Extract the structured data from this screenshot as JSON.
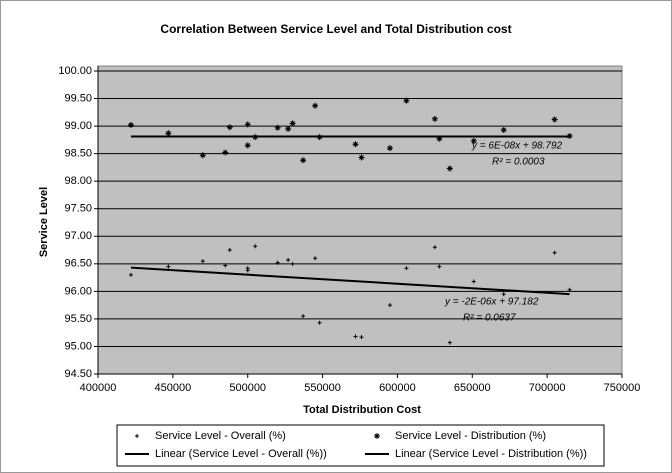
{
  "chart_data": {
    "type": "scatter",
    "title": "Correlation Between Service Level and Total Distribution cost",
    "xlabel": "Total Distribution Cost",
    "ylabel": "Service Level",
    "xlim": [
      400000,
      750000
    ],
    "xticks": [
      400000,
      450000,
      500000,
      550000,
      600000,
      650000,
      700000,
      750000
    ],
    "ylim": [
      94.5,
      100
    ],
    "yticks": [
      {
        "value": 94.5,
        "label": "94.50"
      },
      {
        "value": 95,
        "label": "95.00"
      },
      {
        "value": 95.5,
        "label": "95.50"
      },
      {
        "value": 96,
        "label": "96.00"
      },
      {
        "value": 96.5,
        "label": "96.50"
      },
      {
        "value": 97,
        "label": "97.00"
      },
      {
        "value": 97.5,
        "label": "97.50"
      },
      {
        "value": 98,
        "label": "98.00"
      },
      {
        "value": 98.5,
        "label": "98.50"
      },
      {
        "value": 99,
        "label": "99.00"
      },
      {
        "value": 99.5,
        "label": "99.50"
      },
      {
        "value": 100,
        "label": "100.00"
      }
    ],
    "grid": true,
    "series": [
      {
        "name": "Service Level - Overall (%)",
        "marker": "plus",
        "color": "#000000",
        "x": [
          422000,
          447000,
          470000,
          485000,
          488000,
          500000,
          500000,
          505000,
          520000,
          527000,
          530000,
          537000,
          545000,
          548000,
          572000,
          576000,
          595000,
          606000,
          625000,
          628000,
          635000,
          651000,
          671000,
          705000,
          715000
        ],
        "values": [
          96.3,
          96.45,
          96.55,
          96.47,
          96.75,
          96.42,
          96.38,
          96.82,
          96.52,
          96.57,
          96.5,
          95.55,
          96.6,
          95.43,
          95.18,
          95.17,
          95.75,
          96.42,
          96.8,
          96.45,
          95.07,
          96.18,
          95.95,
          96.7,
          96.03
        ]
      },
      {
        "name": "Service Level - Distribution (%)",
        "marker": "star",
        "color": "#000000",
        "x": [
          422000,
          447000,
          470000,
          485000,
          488000,
          500000,
          500000,
          505000,
          520000,
          527000,
          530000,
          537000,
          545000,
          548000,
          572000,
          576000,
          595000,
          606000,
          625000,
          628000,
          635000,
          651000,
          671000,
          705000,
          715000
        ],
        "values": [
          99.02,
          98.87,
          98.47,
          98.52,
          98.98,
          98.65,
          99.03,
          98.8,
          98.97,
          98.95,
          99.05,
          98.38,
          99.37,
          98.8,
          98.67,
          98.43,
          98.6,
          99.46,
          99.13,
          98.77,
          98.23,
          98.73,
          98.93,
          99.12,
          98.82
        ]
      }
    ],
    "trendlines": [
      {
        "name": "Linear (Service Level - Overall (%))",
        "color": "#000000",
        "x": [
          422000,
          715000
        ],
        "values": [
          96.43,
          95.95
        ]
      },
      {
        "name": "Linear (Service Level - Distribution (%))",
        "color": "#000000",
        "x": [
          422000,
          715000
        ],
        "values": [
          98.81,
          98.81
        ]
      }
    ],
    "annotations": [
      "y = 6E-08x + 98.792",
      "R² = 0.0003",
      "y = -2E-06x + 97.182",
      "R² = 0.0637"
    ]
  }
}
